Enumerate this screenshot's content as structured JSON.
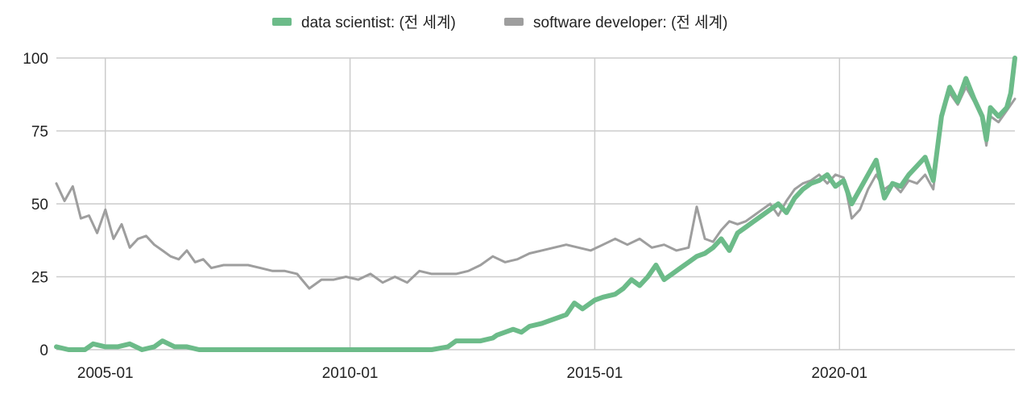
{
  "chart_data": {
    "type": "line",
    "title": "",
    "xlabel": "",
    "ylabel": "",
    "x_range": [
      "2004-01",
      "2023-08"
    ],
    "ylim": [
      0,
      100
    ],
    "yticks": [
      0,
      25,
      50,
      75,
      100
    ],
    "xticks": [
      "2005-01",
      "2010-01",
      "2015-01",
      "2020-01"
    ],
    "grid": true,
    "legend_position": "top",
    "series": [
      {
        "name": "data scientist: (전 세계)",
        "color": "#6cbb89",
        "points": [
          [
            "2004-01",
            1
          ],
          [
            "2004-04",
            0
          ],
          [
            "2004-08",
            0
          ],
          [
            "2004-10",
            2
          ],
          [
            "2005-01",
            1
          ],
          [
            "2005-04",
            1
          ],
          [
            "2005-07",
            2
          ],
          [
            "2005-10",
            0
          ],
          [
            "2006-01",
            1
          ],
          [
            "2006-03",
            3
          ],
          [
            "2006-06",
            1
          ],
          [
            "2006-09",
            1
          ],
          [
            "2006-12",
            0
          ],
          [
            "2007-01",
            0
          ],
          [
            "2007-06",
            0
          ],
          [
            "2008-01",
            0
          ],
          [
            "2008-06",
            0
          ],
          [
            "2009-01",
            0
          ],
          [
            "2009-06",
            0
          ],
          [
            "2010-01",
            0
          ],
          [
            "2010-06",
            0
          ],
          [
            "2011-01",
            0
          ],
          [
            "2011-06",
            0
          ],
          [
            "2011-09",
            0
          ],
          [
            "2012-01",
            1
          ],
          [
            "2012-03",
            3
          ],
          [
            "2012-06",
            3
          ],
          [
            "2012-09",
            3
          ],
          [
            "2012-12",
            4
          ],
          [
            "2013-01",
            5
          ],
          [
            "2013-03",
            6
          ],
          [
            "2013-05",
            7
          ],
          [
            "2013-07",
            6
          ],
          [
            "2013-09",
            8
          ],
          [
            "2013-12",
            9
          ],
          [
            "2014-02",
            10
          ],
          [
            "2014-04",
            11
          ],
          [
            "2014-06",
            12
          ],
          [
            "2014-08",
            16
          ],
          [
            "2014-10",
            14
          ],
          [
            "2015-01",
            17
          ],
          [
            "2015-03",
            18
          ],
          [
            "2015-06",
            19
          ],
          [
            "2015-08",
            21
          ],
          [
            "2015-10",
            24
          ],
          [
            "2015-12",
            22
          ],
          [
            "2016-02",
            25
          ],
          [
            "2016-04",
            29
          ],
          [
            "2016-06",
            24
          ],
          [
            "2016-08",
            26
          ],
          [
            "2016-10",
            28
          ],
          [
            "2016-12",
            30
          ],
          [
            "2017-02",
            32
          ],
          [
            "2017-04",
            33
          ],
          [
            "2017-06",
            35
          ],
          [
            "2017-08",
            38
          ],
          [
            "2017-10",
            34
          ],
          [
            "2017-12",
            40
          ],
          [
            "2018-02",
            42
          ],
          [
            "2018-04",
            44
          ],
          [
            "2018-06",
            46
          ],
          [
            "2018-08",
            48
          ],
          [
            "2018-10",
            50
          ],
          [
            "2018-12",
            47
          ],
          [
            "2019-02",
            52
          ],
          [
            "2019-04",
            55
          ],
          [
            "2019-06",
            57
          ],
          [
            "2019-08",
            58
          ],
          [
            "2019-10",
            60
          ],
          [
            "2019-12",
            56
          ],
          [
            "2020-02",
            58
          ],
          [
            "2020-04",
            50
          ],
          [
            "2020-06",
            55
          ],
          [
            "2020-08",
            60
          ],
          [
            "2020-10",
            65
          ],
          [
            "2020-12",
            52
          ],
          [
            "2021-02",
            57
          ],
          [
            "2021-04",
            56
          ],
          [
            "2021-06",
            60
          ],
          [
            "2021-08",
            63
          ],
          [
            "2021-10",
            66
          ],
          [
            "2021-12",
            58
          ],
          [
            "2022-02",
            80
          ],
          [
            "2022-04",
            90
          ],
          [
            "2022-06",
            85
          ],
          [
            "2022-08",
            93
          ],
          [
            "2022-10",
            86
          ],
          [
            "2022-12",
            80
          ],
          [
            "2023-01",
            72
          ],
          [
            "2023-02",
            83
          ],
          [
            "2023-04",
            80
          ],
          [
            "2023-06",
            83
          ],
          [
            "2023-07",
            88
          ],
          [
            "2023-08",
            100
          ]
        ]
      },
      {
        "name": "software developer: (전 세계)",
        "color": "#9e9e9e",
        "points": [
          [
            "2004-01",
            57
          ],
          [
            "2004-03",
            51
          ],
          [
            "2004-05",
            56
          ],
          [
            "2004-07",
            45
          ],
          [
            "2004-09",
            46
          ],
          [
            "2004-11",
            40
          ],
          [
            "2005-01",
            48
          ],
          [
            "2005-03",
            38
          ],
          [
            "2005-05",
            43
          ],
          [
            "2005-07",
            35
          ],
          [
            "2005-09",
            38
          ],
          [
            "2005-11",
            39
          ],
          [
            "2006-01",
            36
          ],
          [
            "2006-03",
            34
          ],
          [
            "2006-05",
            32
          ],
          [
            "2006-07",
            31
          ],
          [
            "2006-09",
            34
          ],
          [
            "2006-11",
            30
          ],
          [
            "2007-01",
            31
          ],
          [
            "2007-03",
            28
          ],
          [
            "2007-06",
            29
          ],
          [
            "2007-09",
            29
          ],
          [
            "2007-12",
            29
          ],
          [
            "2008-03",
            28
          ],
          [
            "2008-06",
            27
          ],
          [
            "2008-09",
            27
          ],
          [
            "2008-12",
            26
          ],
          [
            "2009-03",
            21
          ],
          [
            "2009-06",
            24
          ],
          [
            "2009-09",
            24
          ],
          [
            "2009-12",
            25
          ],
          [
            "2010-03",
            24
          ],
          [
            "2010-06",
            26
          ],
          [
            "2010-09",
            23
          ],
          [
            "2010-12",
            25
          ],
          [
            "2011-03",
            23
          ],
          [
            "2011-06",
            27
          ],
          [
            "2011-09",
            26
          ],
          [
            "2011-12",
            26
          ],
          [
            "2012-03",
            26
          ],
          [
            "2012-06",
            27
          ],
          [
            "2012-09",
            29
          ],
          [
            "2012-12",
            32
          ],
          [
            "2013-03",
            30
          ],
          [
            "2013-06",
            31
          ],
          [
            "2013-09",
            33
          ],
          [
            "2013-12",
            34
          ],
          [
            "2014-03",
            35
          ],
          [
            "2014-06",
            36
          ],
          [
            "2014-09",
            35
          ],
          [
            "2014-12",
            34
          ],
          [
            "2015-03",
            36
          ],
          [
            "2015-06",
            38
          ],
          [
            "2015-09",
            36
          ],
          [
            "2015-12",
            38
          ],
          [
            "2016-03",
            35
          ],
          [
            "2016-06",
            36
          ],
          [
            "2016-09",
            34
          ],
          [
            "2016-12",
            35
          ],
          [
            "2017-02",
            49
          ],
          [
            "2017-04",
            38
          ],
          [
            "2017-06",
            37
          ],
          [
            "2017-08",
            41
          ],
          [
            "2017-10",
            44
          ],
          [
            "2017-12",
            43
          ],
          [
            "2018-02",
            44
          ],
          [
            "2018-04",
            46
          ],
          [
            "2018-06",
            48
          ],
          [
            "2018-08",
            50
          ],
          [
            "2018-10",
            46
          ],
          [
            "2018-12",
            51
          ],
          [
            "2019-02",
            55
          ],
          [
            "2019-04",
            57
          ],
          [
            "2019-06",
            58
          ],
          [
            "2019-08",
            60
          ],
          [
            "2019-10",
            57
          ],
          [
            "2019-12",
            60
          ],
          [
            "2020-02",
            59
          ],
          [
            "2020-04",
            45
          ],
          [
            "2020-06",
            48
          ],
          [
            "2020-08",
            55
          ],
          [
            "2020-10",
            60
          ],
          [
            "2020-12",
            55
          ],
          [
            "2021-02",
            57
          ],
          [
            "2021-04",
            54
          ],
          [
            "2021-06",
            58
          ],
          [
            "2021-08",
            57
          ],
          [
            "2021-10",
            60
          ],
          [
            "2021-12",
            55
          ],
          [
            "2022-02",
            80
          ],
          [
            "2022-04",
            88
          ],
          [
            "2022-06",
            84
          ],
          [
            "2022-08",
            90
          ],
          [
            "2022-10",
            85
          ],
          [
            "2022-12",
            79
          ],
          [
            "2023-01",
            70
          ],
          [
            "2023-02",
            80
          ],
          [
            "2023-04",
            78
          ],
          [
            "2023-06",
            82
          ],
          [
            "2023-08",
            86
          ]
        ]
      }
    ]
  }
}
